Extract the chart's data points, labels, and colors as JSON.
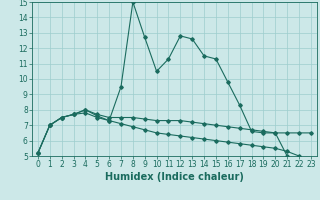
{
  "xlabel": "Humidex (Indice chaleur)",
  "x": [
    0,
    1,
    2,
    3,
    4,
    5,
    6,
    7,
    8,
    9,
    10,
    11,
    12,
    13,
    14,
    15,
    16,
    17,
    18,
    19,
    20,
    21,
    22,
    23
  ],
  "line1": [
    5.2,
    7.0,
    7.5,
    7.7,
    7.8,
    7.5,
    7.3,
    9.5,
    15.0,
    12.7,
    10.5,
    11.3,
    12.8,
    12.6,
    11.5,
    11.3,
    9.8,
    8.3,
    6.6,
    6.5,
    6.5,
    5.0,
    4.8,
    4.8
  ],
  "line2": [
    5.2,
    7.0,
    7.5,
    7.7,
    8.0,
    7.7,
    7.5,
    7.5,
    7.5,
    7.4,
    7.3,
    7.3,
    7.3,
    7.2,
    7.1,
    7.0,
    6.9,
    6.8,
    6.7,
    6.6,
    6.5,
    6.5,
    6.5,
    6.5
  ],
  "line3": [
    5.2,
    7.0,
    7.5,
    7.7,
    8.0,
    7.6,
    7.3,
    7.1,
    6.9,
    6.7,
    6.5,
    6.4,
    6.3,
    6.2,
    6.1,
    6.0,
    5.9,
    5.8,
    5.7,
    5.6,
    5.5,
    5.3,
    5.0,
    4.8
  ],
  "ylim": [
    5,
    15
  ],
  "xlim": [
    -0.5,
    23.5
  ],
  "yticks": [
    5,
    6,
    7,
    8,
    9,
    10,
    11,
    12,
    13,
    14,
    15
  ],
  "xticks": [
    0,
    1,
    2,
    3,
    4,
    5,
    6,
    7,
    8,
    9,
    10,
    11,
    12,
    13,
    14,
    15,
    16,
    17,
    18,
    19,
    20,
    21,
    22,
    23
  ],
  "line_color": "#1a6b5e",
  "bg_color": "#cce8e8",
  "grid_color": "#9ecece"
}
